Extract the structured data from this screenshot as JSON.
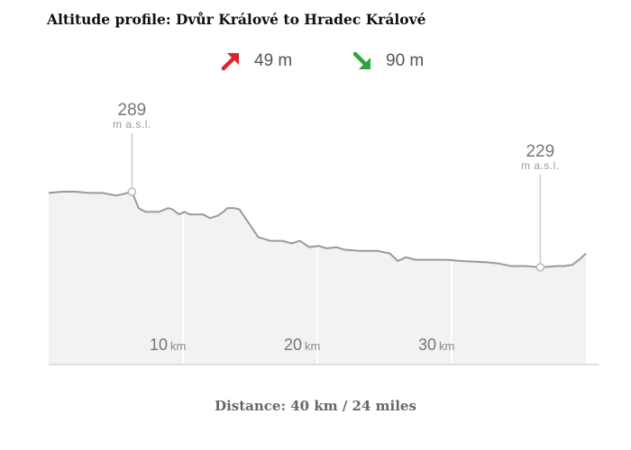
{
  "title": "Altitude profile: Dvůr Králové to Hradec Králové",
  "ascent": {
    "value": "49 m",
    "icon": "arrow-up-right-icon",
    "color": "#d9252b"
  },
  "descent": {
    "value": "90 m",
    "icon": "arrow-down-right-icon",
    "color": "#2aa63c"
  },
  "footer": {
    "label": "Distance:",
    "value": "40 km / 24 miles"
  },
  "chart_data": {
    "type": "area",
    "xlabel": "",
    "ylabel": "",
    "xlim": [
      0,
      40
    ],
    "ylim": [
      200,
      300
    ],
    "x_unit": "km",
    "y_unit": "m a.s.l.",
    "ticks": [
      {
        "value": 10,
        "num": "10",
        "unit": "km"
      },
      {
        "value": 20,
        "num": "20",
        "unit": "km"
      },
      {
        "value": 30,
        "num": "30",
        "unit": "km"
      }
    ],
    "annotations": [
      {
        "x": 6.2,
        "y": 289,
        "value": "289",
        "unit": "m a.s.l."
      },
      {
        "x": 36.6,
        "y": 229,
        "value": "229",
        "unit": "m a.s.l."
      }
    ],
    "x": [
      0,
      1.0,
      2.0,
      3.0,
      4.0,
      5.0,
      5.5,
      6.2,
      6.7,
      7.2,
      8.2,
      8.9,
      9.2,
      9.7,
      10.1,
      10.5,
      11.5,
      12.0,
      12.6,
      13.0,
      13.3,
      13.8,
      14.2,
      14.9,
      15.6,
      16.5,
      17.4,
      18.1,
      18.7,
      19.4,
      20.1,
      20.7,
      21.4,
      22.0,
      23.1,
      24.5,
      25.4,
      26.0,
      26.6,
      27.3,
      28.1,
      29.6,
      30.7,
      32.6,
      33.5,
      34.4,
      35.5,
      36.6,
      37.9,
      38.4,
      39.0,
      39.6,
      40.0
    ],
    "y": [
      288,
      289,
      289,
      288,
      288,
      286,
      287,
      289,
      276,
      273,
      273,
      276,
      275,
      271,
      273,
      271,
      271,
      268,
      270,
      273,
      276,
      276,
      275,
      264,
      253,
      250,
      250,
      248,
      250,
      245,
      246,
      244,
      245,
      243,
      242,
      242,
      240,
      234,
      237,
      235,
      235,
      235,
      234,
      233,
      232,
      230,
      230,
      229,
      230,
      230,
      231,
      236,
      240
    ]
  }
}
